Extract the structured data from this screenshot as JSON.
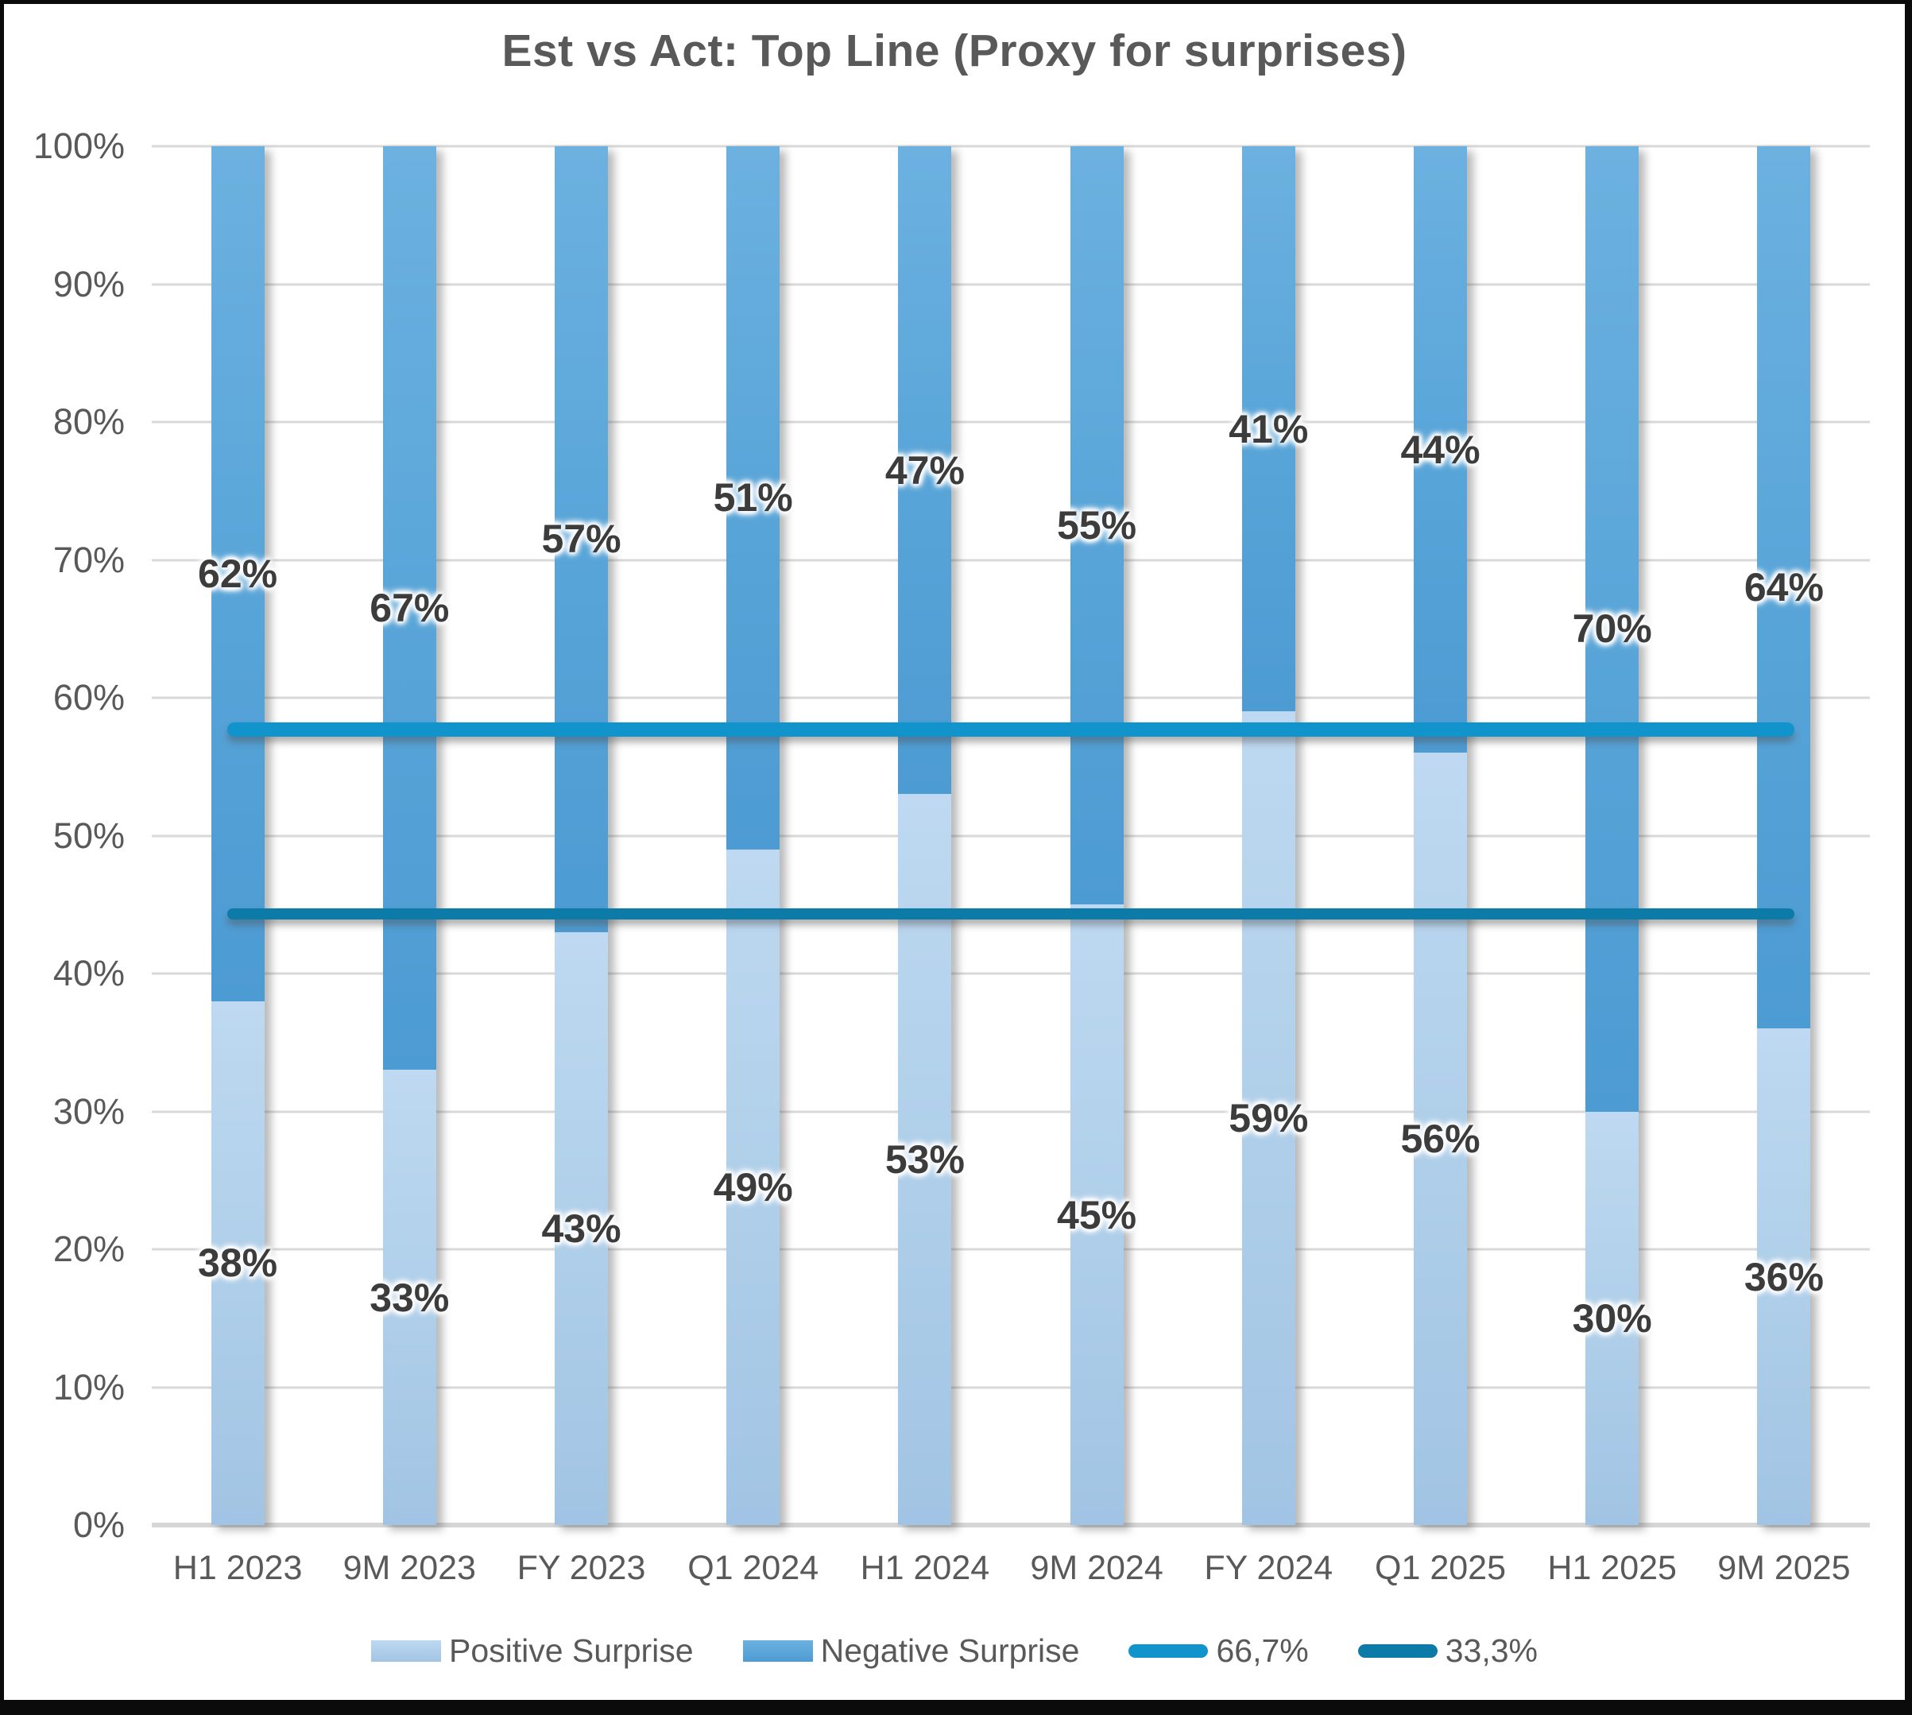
{
  "title": "Est vs Act: Top Line (Proxy for surprises)",
  "chart_data": {
    "type": "bar",
    "subtype": "stacked-100-percent-column",
    "title": "Est vs Act: Top Line (Proxy for surprises)",
    "categories": [
      "H1 2023",
      "9M 2023",
      "FY 2023",
      "Q1 2024",
      "H1 2024",
      "9M 2024",
      "FY 2024",
      "Q1 2025",
      "H1 2025",
      "9M 2025"
    ],
    "series": [
      {
        "name": "Positive Surprise",
        "values": [
          38,
          33,
          43,
          49,
          53,
          45,
          59,
          56,
          30,
          36
        ],
        "data_labels": [
          "38%",
          "33%",
          "43%",
          "49%",
          "53%",
          "45%",
          "59%",
          "56%",
          "30%",
          "36%"
        ],
        "color_top": "#bed9f1",
        "color_bottom": "#a2c4e4"
      },
      {
        "name": "Negative Surprise",
        "values": [
          62,
          67,
          57,
          51,
          47,
          55,
          41,
          44,
          70,
          64
        ],
        "data_labels": [
          "62%",
          "67%",
          "57%",
          "51%",
          "47%",
          "55%",
          "41%",
          "44%",
          "70%",
          "64%"
        ],
        "color_top": "#6cb1e0",
        "color_bottom": "#4d9bd3"
      }
    ],
    "lines": [
      {
        "label": "66,7%",
        "plotted_axis_percent": 57.7,
        "color": "#1094cb",
        "thickness": 18
      },
      {
        "label": "33,3%",
        "plotted_axis_percent": 44.3,
        "color": "#0d7ba8",
        "thickness": 14
      }
    ],
    "y_axis": {
      "min": 0,
      "max": 100,
      "tick_labels": [
        "0%",
        "10%",
        "20%",
        "30%",
        "40%",
        "50%",
        "60%",
        "70%",
        "80%",
        "90%",
        "100%"
      ]
    },
    "xlabel": "",
    "ylabel": "",
    "grid": true,
    "legend_position": "bottom",
    "colors": {
      "grid_line": "#d9d9d9",
      "axis_text": "#595959",
      "title_text": "#595959",
      "data_label_text": "#3c3c3c",
      "background": "#ffffff",
      "frame_border": "#0b0b0b"
    }
  },
  "legend": {
    "entries": [
      "Positive Surprise",
      "Negative Surprise",
      "66,7%",
      "33,3%"
    ]
  }
}
